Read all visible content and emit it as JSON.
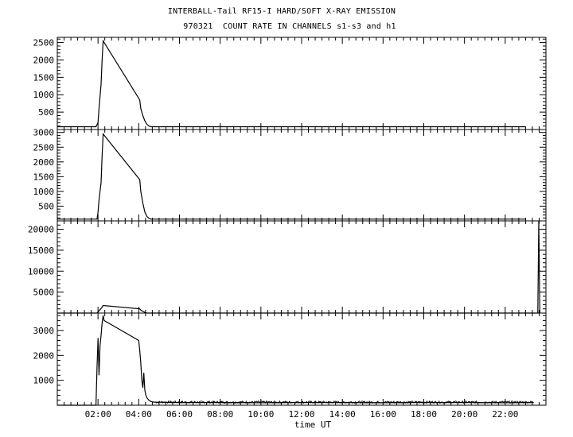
{
  "title": "INTERBALL-Tail RF15-I HARD/SOFT X-RAY EMISSION",
  "subtitle": "970321  COUNT RATE IN CHANNELS s1-s3 and h1",
  "chart_data": [
    {
      "type": "line",
      "panel": "s1",
      "ylim": [
        0,
        2650
      ],
      "yticks": [
        500,
        1000,
        1500,
        2000,
        2500
      ],
      "xlim": [
        0,
        24
      ],
      "series": [
        {
          "x": [
            0,
            1.0,
            1.9,
            2.0,
            2.05,
            2.15,
            2.2,
            2.25,
            4.05,
            4.1,
            4.2,
            4.3,
            4.4,
            4.5,
            4.6,
            5.0,
            6.0,
            8.0,
            10.0,
            12.0,
            14.0,
            16.0,
            18.0,
            20.0,
            22.0,
            23.0
          ],
          "y": [
            80,
            80,
            80,
            200,
            600,
            1300,
            2000,
            2550,
            850,
            600,
            400,
            250,
            150,
            100,
            80,
            80,
            80,
            80,
            80,
            80,
            80,
            80,
            80,
            80,
            80,
            80
          ]
        }
      ]
    },
    {
      "type": "line",
      "panel": "s2",
      "ylim": [
        0,
        3100
      ],
      "yticks": [
        500,
        1000,
        1500,
        2000,
        2500,
        3000
      ],
      "xlim": [
        0,
        24
      ],
      "series": [
        {
          "x": [
            0,
            1.0,
            1.95,
            2.0,
            2.05,
            2.15,
            2.2,
            2.25,
            4.05,
            4.1,
            4.2,
            4.3,
            4.4,
            4.5,
            4.6,
            5.0,
            6.0,
            8.0,
            10.0,
            12.0,
            14.0,
            16.0,
            18.0,
            20.0,
            22.0,
            23.0
          ],
          "y": [
            60,
            60,
            60,
            300,
            700,
            1300,
            2200,
            2950,
            1400,
            1000,
            600,
            300,
            150,
            90,
            60,
            60,
            60,
            60,
            60,
            60,
            60,
            60,
            60,
            60,
            60,
            60
          ]
        }
      ]
    },
    {
      "type": "line",
      "panel": "s3",
      "ylim": [
        0,
        22000
      ],
      "yticks": [
        5000,
        10000,
        15000,
        20000
      ],
      "xlim": [
        0,
        24
      ],
      "series": [
        {
          "x": [
            0,
            1.0,
            1.95,
            2.0,
            2.1,
            2.2,
            2.25,
            4.05,
            4.1,
            4.2,
            4.3,
            4.4,
            5.0,
            8.0,
            12.0,
            16.0,
            20.0,
            23.6,
            23.65,
            23.7
          ],
          "y": [
            0,
            0,
            0,
            300,
            800,
            1400,
            1800,
            1000,
            700,
            400,
            150,
            0,
            0,
            0,
            0,
            0,
            0,
            0,
            22000,
            0
          ]
        }
      ]
    },
    {
      "type": "line",
      "panel": "h1",
      "ylim": [
        0,
        3700
      ],
      "yticks": [
        1000,
        2000,
        3000
      ],
      "xlim": [
        0,
        24
      ],
      "xticks": [
        "02:00",
        "04:00",
        "06:00",
        "08:00",
        "10:00",
        "12:00",
        "14:00",
        "16:00",
        "18:00",
        "20:00",
        "22:00"
      ],
      "xlabel": "time UT",
      "series": [
        {
          "x": [
            0,
            1.0,
            1.9,
            1.95,
            2.0,
            2.05,
            2.1,
            2.15,
            2.2,
            2.25,
            2.3,
            4.0,
            4.05,
            4.1,
            4.15,
            4.2,
            4.25,
            4.3,
            4.35,
            4.4,
            4.5,
            4.6,
            4.7,
            4.8,
            5.0,
            6.0,
            8.0,
            10.0,
            12.0,
            14.0,
            16.0,
            18.0,
            20.0,
            22.0,
            23.4
          ],
          "y": [
            0,
            0,
            0,
            1500,
            2700,
            1200,
            2400,
            2800,
            3300,
            3600,
            3400,
            2600,
            2200,
            1700,
            1000,
            700,
            1300,
            600,
            400,
            300,
            200,
            150,
            130,
            120,
            120,
            110,
            110,
            100,
            110,
            110,
            100,
            110,
            110,
            100,
            110
          ]
        }
      ]
    }
  ]
}
